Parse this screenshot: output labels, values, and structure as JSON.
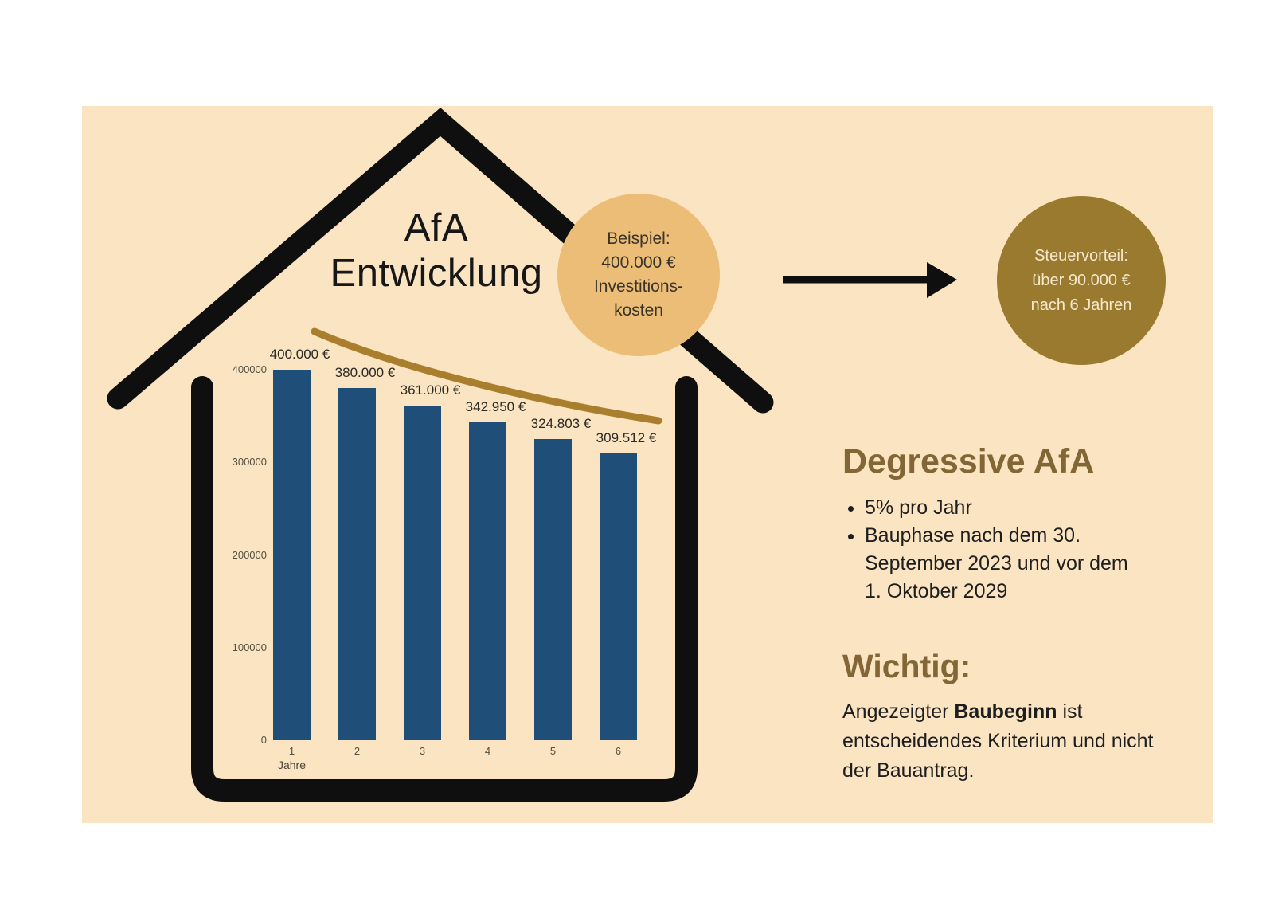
{
  "page": {
    "background": "#ffffff",
    "panel_color": "#FAE4C2"
  },
  "diagram": {
    "house_color": "#0f0f0f",
    "arrow_color": "#0f0f0f"
  },
  "title": {
    "line1": "AfA",
    "line2": "Entwicklung"
  },
  "beispiel_bubble": {
    "color": "#ECBD76",
    "lines": [
      "Beispiel:",
      "400.000 €",
      "Investitions-",
      "kosten"
    ]
  },
  "steuer_bubble": {
    "color": "#9A7A2E",
    "text_color": "#F6E8CC",
    "lines": [
      "Steuervorteil:",
      "über 90.000 €",
      "nach 6 Jahren"
    ]
  },
  "chart_data": {
    "type": "bar",
    "title": "AfA Entwicklung",
    "categories": [
      "1",
      "2",
      "3",
      "4",
      "5",
      "6"
    ],
    "values": [
      400000,
      380000,
      361000,
      342950,
      324803,
      309512
    ],
    "bar_labels": [
      "400.000 €",
      "380.000 €",
      "361.000 €",
      "342.950 €",
      "324.803 €",
      "309.512 €"
    ],
    "xlabel": "Jahre",
    "ylabel": "",
    "yticks": [
      0,
      100000,
      200000,
      300000,
      400000
    ],
    "ytick_labels": [
      "0",
      "100000",
      "200000",
      "300000",
      "400000"
    ],
    "ylim": [
      0,
      400000
    ],
    "grid": false,
    "legend": false,
    "bar_color": "#1F4E79",
    "trend_color": "#A97F2E",
    "trend_note": "declining depreciation curve above bars"
  },
  "right_panel": {
    "accent_color": "#826636",
    "heading1": "Degressive AfA",
    "bullets": [
      "5% pro Jahr",
      "Bauphase nach dem 30. September 2023 und vor dem 1. Oktober 2029"
    ],
    "heading2": "Wichtig:",
    "note_prefix": "Angezeigter ",
    "note_bold": "Baubeginn",
    "note_suffix": " ist entscheidendes Kriterium und nicht der Bauantrag."
  }
}
